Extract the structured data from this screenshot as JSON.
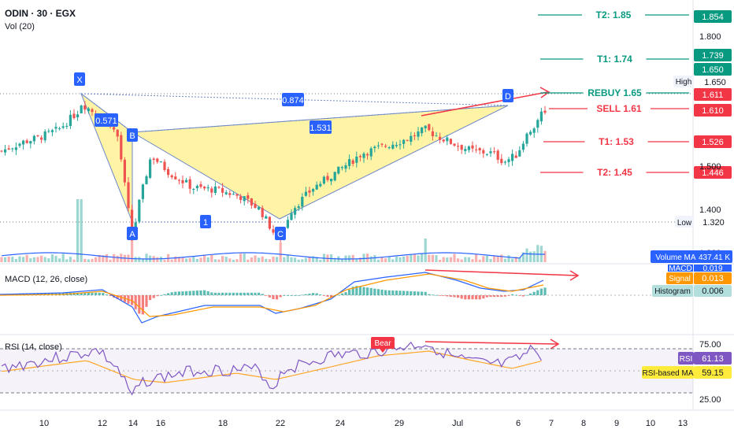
{
  "header": {
    "symbol_line": "ODIN · 30 · EGX",
    "volume_label": "Vol (20)"
  },
  "colors": {
    "up": "#26a69a",
    "down": "#ef5350",
    "blue": "#2962ff",
    "teal": "#089981",
    "red": "#f23645",
    "orange": "#ff9800",
    "rsi": "#7e57c2",
    "pattern_fill": "#fff3a6"
  },
  "levels": [
    {
      "label": "T2: 1.85",
      "price": 1.854,
      "tag": "1.854",
      "color": "#089981"
    },
    {
      "label": "T1: 1.74",
      "price": 1.739,
      "tag": "1.739",
      "color": "#089981"
    },
    {
      "label": "REBUY 1.65",
      "price": 1.65,
      "tag": "1.650",
      "color": "#089981"
    },
    {
      "label": "SELL 1.61",
      "price": 1.61,
      "tag": "1.610",
      "color": "#f23645"
    },
    {
      "label": "T1: 1.53",
      "price": 1.526,
      "tag": "1.526",
      "color": "#f23645"
    },
    {
      "label": "T2: 1.45",
      "price": 1.446,
      "tag": "1.446",
      "color": "#f23645"
    }
  ],
  "price_tags": {
    "current": "1.611",
    "high_label": "High",
    "high_value": "1.650",
    "low_label": "Low",
    "low_value": "1.320"
  },
  "price_axis": [
    {
      "label": "1.800",
      "price": 1.8
    },
    {
      "label": "1.500",
      "price": 1.5
    },
    {
      "label": "1.400",
      "price": 1.4
    },
    {
      "label": "1.300",
      "price": 1.3
    }
  ],
  "pattern": {
    "points": [
      {
        "label": "X",
        "price": 1.65
      },
      {
        "label": "A",
        "price": 1.325
      },
      {
        "label": "B",
        "price": 1.555
      },
      {
        "label": "C",
        "price": 1.33
      },
      {
        "label": "D",
        "price": 1.615
      }
    ],
    "ratios": [
      "0.571",
      "1",
      "1.531",
      "0.874"
    ]
  },
  "x_axis": [
    "10",
    "12",
    "14",
    "16",
    "18",
    "22",
    "24",
    "29",
    "Jul",
    "6",
    "7",
    "8",
    "9",
    "10",
    "13"
  ],
  "macd": {
    "title": "MACD (12, 26, close)",
    "legend": [
      {
        "label": "MACD",
        "value": "0.019"
      },
      {
        "label": "Signal",
        "value": "0.013"
      },
      {
        "label": "Histogram",
        "value": "0.006"
      }
    ]
  },
  "volume_ma": {
    "label": "Volume MA",
    "value": "437.41 K"
  },
  "rsi": {
    "title": "RSI (14, close)",
    "bear_label": "Bear",
    "axis": [
      "75.00",
      "25.00"
    ],
    "legend": [
      {
        "label": "RSI",
        "value": "61.13"
      },
      {
        "label": "RSI-based MA",
        "value": "59.15"
      }
    ]
  },
  "chart_data": {
    "type": "candlestick",
    "title": "ODIN · 30 · EGX",
    "sessions": [
      "10",
      "12",
      "14",
      "16",
      "18",
      "22",
      "24",
      "29",
      "Jul",
      "6"
    ],
    "approx_closes": [
      1.55,
      1.57,
      1.63,
      1.52,
      1.33,
      1.5,
      1.45,
      1.42,
      1.37,
      1.4,
      1.46,
      1.52,
      1.54,
      1.55,
      1.56,
      1.58,
      1.54,
      1.52,
      1.57,
      1.61,
      1.63,
      1.61
    ],
    "ylim": [
      1.29,
      1.87
    ],
    "harmonic_pattern": {
      "X": 1.65,
      "A": 1.325,
      "B": 1.555,
      "C": 1.33,
      "D": 1.615,
      "ratios": [
        0.571,
        1,
        1.531,
        0.874
      ]
    },
    "rsi_last": 61.13,
    "rsi_ma_last": 59.15,
    "macd_last": 0.019,
    "signal_last": 0.013,
    "histogram_last": 0.006,
    "volume_ma_last": "437.41 K"
  }
}
